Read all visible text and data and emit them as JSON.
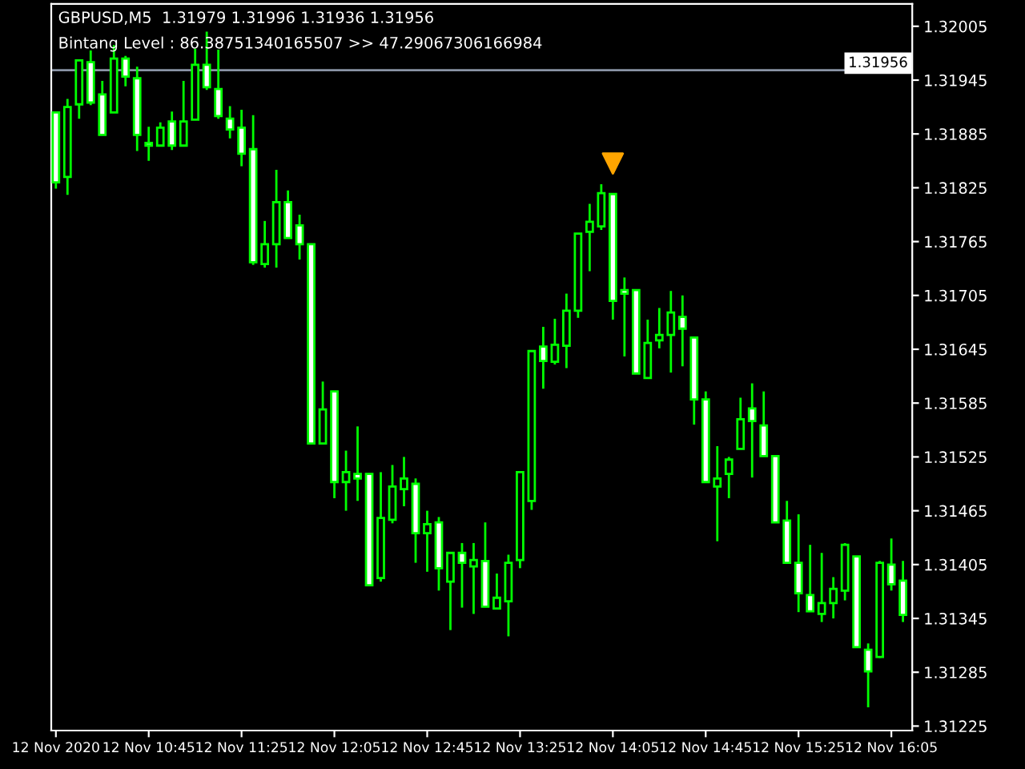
{
  "chart_data": {
    "type": "candlestick",
    "title": "GBPUSD,M5  1.31979 1.31996 1.31936 1.31956",
    "subtitle": "Bintang Level : 86.38751340165507 >> 47.29067306166984",
    "xlim": [
      "2020-11-12T10:03",
      "2020-11-12T16:14"
    ],
    "xticks": [
      {
        "value": "2020-11-12T10:05",
        "label": "12 Nov 2020"
      },
      {
        "value": "2020-11-12T10:45",
        "label": "12 Nov 10:45"
      },
      {
        "value": "2020-11-12T11:25",
        "label": "12 Nov 11:25"
      },
      {
        "value": "2020-11-12T12:05",
        "label": "12 Nov 12:05"
      },
      {
        "value": "2020-11-12T12:45",
        "label": "12 Nov 12:45"
      },
      {
        "value": "2020-11-12T13:25",
        "label": "12 Nov 13:25"
      },
      {
        "value": "2020-11-12T14:05",
        "label": "12 Nov 14:05"
      },
      {
        "value": "2020-11-12T14:45",
        "label": "12 Nov 14:45"
      },
      {
        "value": "2020-11-12T15:25",
        "label": "12 Nov 15:25"
      },
      {
        "value": "2020-11-12T16:05",
        "label": "12 Nov 16:05"
      }
    ],
    "ylim": [
      1.3122,
      1.3203
    ],
    "yticks": [
      1.31225,
      1.31285,
      1.31345,
      1.31405,
      1.31465,
      1.31525,
      1.31585,
      1.31645,
      1.31705,
      1.31765,
      1.31825,
      1.31885,
      1.31945,
      1.32005
    ],
    "grid": false,
    "legend": false,
    "ref_lines": [
      {
        "axis": "y",
        "value": 1.31956,
        "label": "1.31956",
        "color": "#8a94a6"
      }
    ],
    "series": [
      {
        "color": "#00ff00",
        "x": [
          "2020-11-12T10:05",
          "2020-11-12T10:10",
          "2020-11-12T10:15",
          "2020-11-12T10:20",
          "2020-11-12T10:25",
          "2020-11-12T10:30",
          "2020-11-12T10:35",
          "2020-11-12T10:40",
          "2020-11-12T10:45",
          "2020-11-12T10:50",
          "2020-11-12T10:55",
          "2020-11-12T11:00",
          "2020-11-12T11:05",
          "2020-11-12T11:10",
          "2020-11-12T11:15",
          "2020-11-12T11:20",
          "2020-11-12T11:25",
          "2020-11-12T11:30",
          "2020-11-12T11:35",
          "2020-11-12T11:40",
          "2020-11-12T11:45",
          "2020-11-12T11:50",
          "2020-11-12T11:55",
          "2020-11-12T12:00",
          "2020-11-12T12:05",
          "2020-11-12T12:10",
          "2020-11-12T12:15",
          "2020-11-12T12:20",
          "2020-11-12T12:25",
          "2020-11-12T12:30",
          "2020-11-12T12:35",
          "2020-11-12T12:40",
          "2020-11-12T12:45",
          "2020-11-12T12:50",
          "2020-11-12T12:55",
          "2020-11-12T13:00",
          "2020-11-12T13:05",
          "2020-11-12T13:10",
          "2020-11-12T13:15",
          "2020-11-12T13:20",
          "2020-11-12T13:25",
          "2020-11-12T13:30",
          "2020-11-12T13:35",
          "2020-11-12T13:40",
          "2020-11-12T13:45",
          "2020-11-12T13:50",
          "2020-11-12T13:55",
          "2020-11-12T14:00",
          "2020-11-12T14:05",
          "2020-11-12T14:10",
          "2020-11-12T14:15",
          "2020-11-12T14:20",
          "2020-11-12T14:25",
          "2020-11-12T14:30",
          "2020-11-12T14:35",
          "2020-11-12T14:40",
          "2020-11-12T14:45",
          "2020-11-12T14:50",
          "2020-11-12T14:55",
          "2020-11-12T15:00",
          "2020-11-12T15:05",
          "2020-11-12T15:10",
          "2020-11-12T15:15",
          "2020-11-12T15:20",
          "2020-11-12T15:25",
          "2020-11-12T15:30",
          "2020-11-12T15:35",
          "2020-11-12T15:40",
          "2020-11-12T15:45",
          "2020-11-12T15:50",
          "2020-11-12T15:55",
          "2020-11-12T16:00",
          "2020-11-12T16:05",
          "2020-11-12T16:10"
        ],
        "ohlc": [
          [
            1.31909,
            1.3191,
            1.31824,
            1.31831
          ],
          [
            1.31837,
            1.31924,
            1.31817,
            1.31915
          ],
          [
            1.31918,
            1.31968,
            1.31902,
            1.31967
          ],
          [
            1.31965,
            1.31978,
            1.31917,
            1.3192
          ],
          [
            1.31929,
            1.31944,
            1.31884,
            1.31884
          ],
          [
            1.31909,
            1.31984,
            1.31909,
            1.31969
          ],
          [
            1.31969,
            1.31972,
            1.31938,
            1.31949
          ],
          [
            1.31947,
            1.3196,
            1.31866,
            1.31884
          ],
          [
            1.31875,
            1.31893,
            1.31855,
            1.31872
          ],
          [
            1.31872,
            1.31898,
            1.31872,
            1.31892
          ],
          [
            1.31899,
            1.3191,
            1.31867,
            1.31872
          ],
          [
            1.31872,
            1.31944,
            1.31872,
            1.31899
          ],
          [
            1.31901,
            1.3198,
            1.31901,
            1.31962
          ],
          [
            1.31962,
            1.31999,
            1.31934,
            1.31937
          ],
          [
            1.31935,
            1.31979,
            1.31902,
            1.31905
          ],
          [
            1.31902,
            1.31916,
            1.3188,
            1.3189
          ],
          [
            1.31892,
            1.31912,
            1.31849,
            1.31863
          ],
          [
            1.31868,
            1.31906,
            1.31739,
            1.31742
          ],
          [
            1.3174,
            1.31788,
            1.31736,
            1.31762
          ],
          [
            1.31762,
            1.31845,
            1.31736,
            1.31809
          ],
          [
            1.31809,
            1.31822,
            1.31769,
            1.31769
          ],
          [
            1.31783,
            1.31795,
            1.31745,
            1.31762
          ],
          [
            1.31762,
            1.31762,
            1.3154,
            1.3154
          ],
          [
            1.3154,
            1.31609,
            1.3154,
            1.31578
          ],
          [
            1.31598,
            1.31598,
            1.31479,
            1.31497
          ],
          [
            1.31497,
            1.31532,
            1.31465,
            1.31508
          ],
          [
            1.31506,
            1.31559,
            1.31476,
            1.31501
          ],
          [
            1.31506,
            1.31506,
            1.31382,
            1.31382
          ],
          [
            1.3139,
            1.31508,
            1.31386,
            1.31457
          ],
          [
            1.31455,
            1.31516,
            1.31451,
            1.31492
          ],
          [
            1.31489,
            1.31525,
            1.3147,
            1.31501
          ],
          [
            1.31495,
            1.31501,
            1.31407,
            1.3144
          ],
          [
            1.3144,
            1.31465,
            1.31397,
            1.3145
          ],
          [
            1.31452,
            1.31458,
            1.31376,
            1.31401
          ],
          [
            1.31386,
            1.31418,
            1.31332,
            1.31418
          ],
          [
            1.31418,
            1.31429,
            1.31357,
            1.31407
          ],
          [
            1.31403,
            1.31429,
            1.3135,
            1.3141
          ],
          [
            1.31409,
            1.31452,
            1.31358,
            1.31358
          ],
          [
            1.31356,
            1.31395,
            1.31356,
            1.31368
          ],
          [
            1.31364,
            1.31416,
            1.31325,
            1.31407
          ],
          [
            1.3141,
            1.31508,
            1.31401,
            1.31508
          ],
          [
            1.31476,
            1.31643,
            1.31466,
            1.31643
          ],
          [
            1.31648,
            1.3167,
            1.31601,
            1.31632
          ],
          [
            1.31631,
            1.31679,
            1.31628,
            1.3165
          ],
          [
            1.31649,
            1.31707,
            1.31624,
            1.31688
          ],
          [
            1.31688,
            1.31774,
            1.3168,
            1.31774
          ],
          [
            1.31776,
            1.31807,
            1.31732,
            1.31787
          ],
          [
            1.31782,
            1.31829,
            1.31778,
            1.31819
          ],
          [
            1.31818,
            1.31818,
            1.31678,
            1.31699
          ],
          [
            1.31711,
            1.31725,
            1.31637,
            1.31707
          ],
          [
            1.31711,
            1.31711,
            1.31618,
            1.31618
          ],
          [
            1.31613,
            1.31678,
            1.31612,
            1.31652
          ],
          [
            1.31655,
            1.31691,
            1.31646,
            1.31661
          ],
          [
            1.31661,
            1.3171,
            1.31619,
            1.31686
          ],
          [
            1.31681,
            1.31705,
            1.31626,
            1.31668
          ],
          [
            1.31658,
            1.31658,
            1.31561,
            1.31589
          ],
          [
            1.31589,
            1.31598,
            1.31497,
            1.31497
          ],
          [
            1.31492,
            1.31537,
            1.31431,
            1.31501
          ],
          [
            1.31506,
            1.31525,
            1.31479,
            1.31522
          ],
          [
            1.31534,
            1.31591,
            1.31534,
            1.31567
          ],
          [
            1.31579,
            1.31607,
            1.31502,
            1.31565
          ],
          [
            1.3156,
            1.31598,
            1.31526,
            1.31526
          ],
          [
            1.31526,
            1.31526,
            1.31452,
            1.31452
          ],
          [
            1.31454,
            1.31476,
            1.31407,
            1.31407
          ],
          [
            1.31407,
            1.31461,
            1.31352,
            1.31373
          ],
          [
            1.31371,
            1.31427,
            1.31353,
            1.31353
          ],
          [
            1.3135,
            1.31418,
            1.31341,
            1.31362
          ],
          [
            1.31362,
            1.31391,
            1.31345,
            1.31378
          ],
          [
            1.31376,
            1.31429,
            1.31365,
            1.31427
          ],
          [
            1.31414,
            1.31414,
            1.31313,
            1.31313
          ],
          [
            1.3131,
            1.31317,
            1.31246,
            1.31286
          ],
          [
            1.31302,
            1.31409,
            1.31301,
            1.31407
          ],
          [
            1.31405,
            1.31434,
            1.31376,
            1.31383
          ],
          [
            1.31387,
            1.31409,
            1.31341,
            1.31349
          ]
        ]
      },
      {
        "type": "scatter",
        "color": "#ffa500",
        "marker": "triangle",
        "x": [
          "2020-11-12T14:05"
        ],
        "values": [
          1.31852
        ]
      }
    ]
  }
}
